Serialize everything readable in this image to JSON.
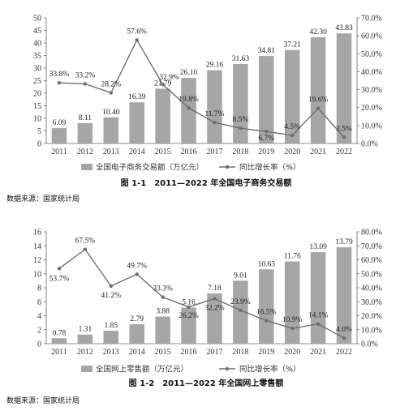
{
  "chart_data": [
    {
      "type": "bar",
      "categories": [
        "2011",
        "2012",
        "2013",
        "2014",
        "2015",
        "2016",
        "2017",
        "2018",
        "2019",
        "2020",
        "2021",
        "2022"
      ],
      "series": [
        {
          "name": "全国电子商务交易额（万亿元）",
          "type": "bar",
          "axis": "left",
          "values": [
            6.09,
            8.11,
            10.4,
            16.39,
            21.79,
            26.1,
            29.16,
            31.63,
            34.81,
            37.21,
            42.3,
            43.83
          ],
          "labels": [
            "6.09",
            "8.11",
            "10.40",
            "16.39",
            "21.79",
            "26.10",
            "29.16",
            "31.63",
            "34.81",
            "37.21",
            "42.30",
            "43.83"
          ]
        },
        {
          "name": "同比增长率（%）",
          "type": "line",
          "axis": "right",
          "values": [
            33.8,
            33.2,
            28.2,
            57.6,
            32.9,
            19.8,
            11.7,
            8.5,
            6.7,
            4.5,
            19.6,
            3.5
          ],
          "labels": [
            "33.8%",
            "33.2%",
            "28.2%",
            "57.6%",
            "32.9%",
            "19.8%",
            "11.7%",
            "8.5%",
            "6.7%",
            "4.5%",
            "19.6%",
            "3.5%"
          ]
        }
      ],
      "ylim": [
        0,
        50
      ],
      "yticks": [
        "0",
        "5",
        "10",
        "15",
        "20",
        "25",
        "30",
        "35",
        "40",
        "45",
        "50"
      ],
      "y2lim": [
        0,
        70
      ],
      "y2ticks": [
        "0.0%",
        "10.0%",
        "20.0%",
        "30.0%",
        "40.0%",
        "50.0%",
        "60.0%",
        "70.0%"
      ],
      "legend_position": "bottom",
      "caption": "图 1-1　2011—2022 年全国电子商务交易额",
      "source": "数据来源：国家统计局",
      "colors": {
        "bar": "#a6a6a6",
        "line": "#6e6e6e"
      }
    },
    {
      "type": "bar",
      "categories": [
        "2011",
        "2012",
        "2013",
        "2014",
        "2015",
        "2016",
        "2017",
        "2018",
        "2019",
        "2020",
        "2021",
        "2022"
      ],
      "series": [
        {
          "name": "全国网上零售额（万亿元）",
          "type": "bar",
          "axis": "left",
          "values": [
            0.78,
            1.31,
            1.85,
            2.79,
            3.88,
            5.16,
            7.18,
            9.01,
            10.63,
            11.76,
            13.09,
            13.79
          ],
          "labels": [
            "0.78",
            "1.31",
            "1.85",
            "2.79",
            "3.88",
            "5.16",
            "7.18",
            "9.01",
            "10.63",
            "11.76",
            "13.09",
            "13.79"
          ]
        },
        {
          "name": "同比增长率（%）",
          "type": "line",
          "axis": "right",
          "values": [
            53.7,
            67.5,
            41.2,
            49.7,
            33.3,
            26.2,
            32.2,
            23.9,
            16.5,
            10.9,
            14.1,
            4.0
          ],
          "labels": [
            "53.7%",
            "67.5%",
            "41.2%",
            "49.7%",
            "33.3%",
            "26.2%",
            "32.2%",
            "23.9%",
            "16.5%",
            "10.9%",
            "14.1%",
            "4.0%"
          ]
        }
      ],
      "ylim": [
        0,
        16
      ],
      "yticks": [
        "0",
        "2",
        "4",
        "6",
        "8",
        "10",
        "12",
        "14",
        "16"
      ],
      "y2lim": [
        0,
        80
      ],
      "y2ticks": [
        "0.0%",
        "10.0%",
        "20.0%",
        "30.0%",
        "40.0%",
        "50.0%",
        "60.0%",
        "70.0%",
        "80.0%"
      ],
      "legend_position": "bottom",
      "caption": "图 1-2　2011—2022 年全国网上零售额",
      "source": "数据来源：国家统计局",
      "colors": {
        "bar": "#a6a6a6",
        "line": "#6e6e6e"
      }
    }
  ]
}
